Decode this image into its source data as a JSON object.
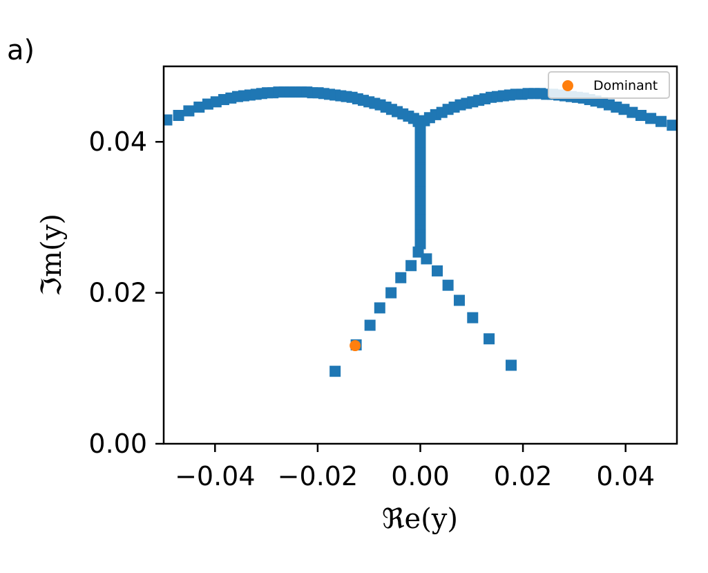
{
  "panel_label": "a)",
  "chart_data": {
    "type": "scatter",
    "xlabel": "ℜe(y)",
    "ylabel": "ℑm(y)",
    "xlim": [
      -0.05,
      0.05
    ],
    "ylim": [
      0.0,
      0.05
    ],
    "xticks": [
      -0.04,
      -0.02,
      0.0,
      0.02,
      0.04
    ],
    "xtick_labels": [
      "−0.04",
      "−0.02",
      "0.00",
      "0.02",
      "0.04"
    ],
    "yticks": [
      0.0,
      0.02,
      0.04
    ],
    "ytick_labels": [
      "0.00",
      "0.02",
      "0.04"
    ],
    "grid": false,
    "legend_position": "upper right",
    "series": [
      {
        "color": "#1f77b4",
        "marker": "square",
        "x": [
          -0.0494,
          -0.0471,
          -0.0451,
          -0.0431,
          -0.0414,
          -0.0398,
          -0.0383,
          -0.0369,
          -0.0356,
          -0.0344,
          -0.0332,
          -0.032,
          -0.0309,
          -0.0298,
          -0.0287,
          -0.0276,
          -0.0265,
          -0.0254,
          -0.0243,
          -0.0232,
          -0.0221,
          -0.021,
          -0.0199,
          -0.0188,
          -0.0177,
          -0.0166,
          -0.0155,
          -0.0144,
          -0.0133,
          -0.0122,
          -0.0111,
          -0.01,
          -0.0089,
          -0.0078,
          -0.0067,
          -0.0056,
          -0.0045,
          -0.0034,
          -0.0023,
          -0.0013,
          -0.0004,
          0.0008,
          0.0018,
          0.003,
          0.0042,
          0.0054,
          0.0066,
          0.0078,
          0.009,
          0.0102,
          0.0114,
          0.0126,
          0.0138,
          0.015,
          0.0162,
          0.0174,
          0.0186,
          0.0198,
          0.021,
          0.0222,
          0.0234,
          0.0246,
          0.0258,
          0.027,
          0.0282,
          0.0294,
          0.0306,
          0.0318,
          0.033,
          0.0342,
          0.0355,
          0.0368,
          0.0382,
          0.0397,
          0.0413,
          0.043,
          0.0449,
          0.0469,
          0.0491,
          0.0,
          0.0,
          0.0,
          0.0,
          0.0,
          0.0,
          0.0,
          0.0,
          0.0,
          0.0,
          0.0,
          0.0,
          0.0,
          0.0,
          0.0,
          0.0,
          0.0,
          0.0,
          0.0,
          0.0,
          0.0,
          0.0,
          0.0,
          0.0,
          0.0,
          0.0,
          0.0,
          -0.0004,
          -0.0018,
          -0.0038,
          -0.0057,
          -0.0079,
          -0.0098,
          -0.0125,
          -0.0166,
          0.0012,
          0.0033,
          0.0054,
          0.0076,
          0.0102,
          0.0134,
          0.0177
        ],
        "y": [
          0.0429,
          0.0435,
          0.0441,
          0.0446,
          0.045,
          0.0453,
          0.0456,
          0.0458,
          0.046,
          0.0461,
          0.0462,
          0.0463,
          0.0464,
          0.0465,
          0.0465,
          0.0466,
          0.0466,
          0.0466,
          0.0466,
          0.0466,
          0.0466,
          0.0465,
          0.0465,
          0.0464,
          0.0463,
          0.0462,
          0.0461,
          0.046,
          0.0459,
          0.0457,
          0.0455,
          0.0453,
          0.0451,
          0.0449,
          0.0446,
          0.0443,
          0.044,
          0.0437,
          0.0434,
          0.0431,
          0.0427,
          0.0428,
          0.0432,
          0.0436,
          0.0439,
          0.0443,
          0.0446,
          0.0449,
          0.0451,
          0.0453,
          0.0455,
          0.0457,
          0.0459,
          0.046,
          0.0461,
          0.0462,
          0.0463,
          0.0463,
          0.0464,
          0.0464,
          0.0464,
          0.0463,
          0.0463,
          0.0462,
          0.0461,
          0.046,
          0.0459,
          0.0458,
          0.0456,
          0.0454,
          0.0452,
          0.0449,
          0.0446,
          0.0443,
          0.0439,
          0.0435,
          0.0431,
          0.0427,
          0.0422,
          0.0415,
          0.0405,
          0.0395,
          0.0385,
          0.0375,
          0.0365,
          0.0355,
          0.0345,
          0.0335,
          0.0325,
          0.0318,
          0.031,
          0.0303,
          0.0297,
          0.029,
          0.0285,
          0.028,
          0.0276,
          0.0272,
          0.0268,
          0.0265,
          0.0362,
          0.0348,
          0.0334,
          0.0321,
          0.0308,
          0.0296,
          0.0254,
          0.0236,
          0.022,
          0.02,
          0.018,
          0.0157,
          0.0131,
          0.0096,
          0.0245,
          0.0229,
          0.021,
          0.019,
          0.0167,
          0.0139,
          0.0104
        ]
      },
      {
        "name": "Dominant",
        "color": "#ff7f0e",
        "marker": "circle",
        "x": [
          -0.0127
        ],
        "y": [
          0.013
        ]
      }
    ]
  }
}
